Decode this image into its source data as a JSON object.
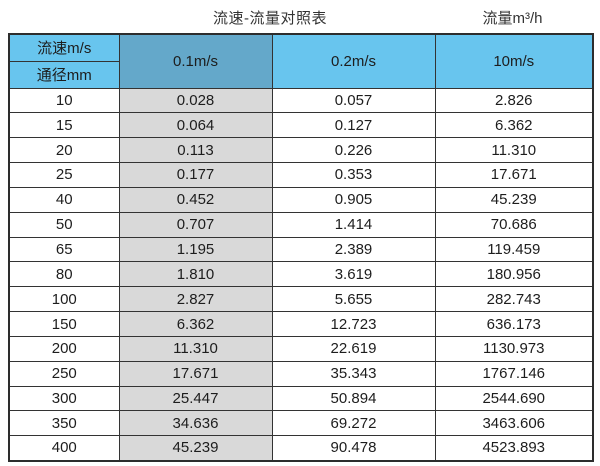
{
  "page": {
    "title": "流速-流量对照表",
    "unit_label": "流量m³/h"
  },
  "colors": {
    "header_blue": "#68C5EE",
    "header_dark_blue": "#64A8CA",
    "column_gray": "#D9D9D9",
    "grid_border": "#333333",
    "background": "#ffffff"
  },
  "table": {
    "corner": {
      "row1": "流速m/s",
      "row2": "通径mm"
    },
    "columns": [
      "0.1m/s",
      "0.2m/s",
      "10m/s"
    ],
    "rows": [
      [
        "10",
        "0.028",
        "0.057",
        "2.826"
      ],
      [
        "15",
        "0.064",
        "0.127",
        "6.362"
      ],
      [
        "20",
        "0.113",
        "0.226",
        "11.310"
      ],
      [
        "25",
        "0.177",
        "0.353",
        "17.671"
      ],
      [
        "40",
        "0.452",
        "0.905",
        "45.239"
      ],
      [
        "50",
        "0.707",
        "1.414",
        "70.686"
      ],
      [
        "65",
        "1.195",
        "2.389",
        "119.459"
      ],
      [
        "80",
        "1.810",
        "3.619",
        "180.956"
      ],
      [
        "100",
        "2.827",
        "5.655",
        "282.743"
      ],
      [
        "150",
        "6.362",
        "12.723",
        "636.173"
      ],
      [
        "200",
        "11.310",
        "22.619",
        "1130.973"
      ],
      [
        "250",
        "17.671",
        "35.343",
        "1767.146"
      ],
      [
        "300",
        "25.447",
        "50.894",
        "2544.690"
      ],
      [
        "350",
        "34.636",
        "69.272",
        "3463.606"
      ],
      [
        "400",
        "45.239",
        "90.478",
        "4523.893"
      ]
    ]
  }
}
